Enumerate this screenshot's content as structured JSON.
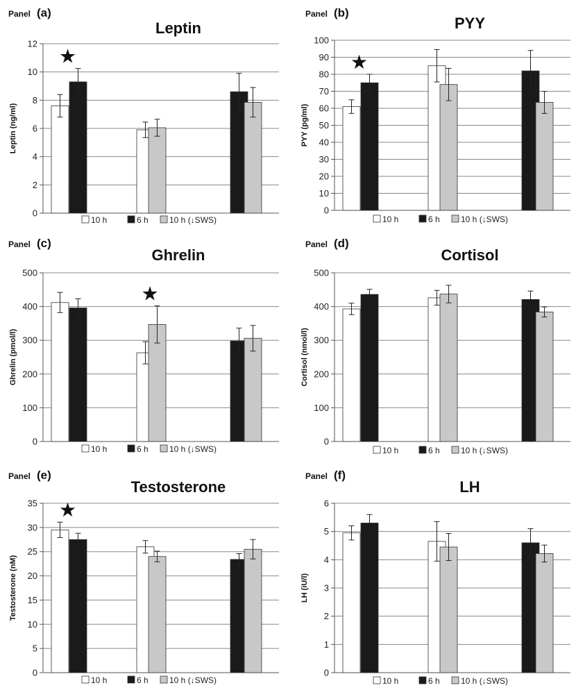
{
  "colors": {
    "ten_h": "#ffffff",
    "six_h": "#1a1a1a",
    "ten_h_sws": "#c8c8c8",
    "grid": "#888888",
    "axis": "#555555"
  },
  "legend": {
    "items": [
      "10 h",
      "6 h",
      "10 h (↓SWS)"
    ]
  },
  "chart_data": [
    {
      "type": "bar",
      "panel_label": "Panel",
      "panel_letter": "(a)",
      "title": "Leptin",
      "ylabel": "Leptin (ng/ml)",
      "ylim": [
        0,
        12
      ],
      "yticks": [
        0,
        2,
        4,
        6,
        8,
        10,
        12
      ],
      "grid": true,
      "groups": [
        {
          "bars": [
            {
              "series": "10 h",
              "value": 7.6,
              "error": 0.8
            },
            {
              "series": "6 h",
              "value": 9.3,
              "error": 0.95
            }
          ],
          "star": "★"
        },
        {
          "bars": [
            {
              "series": "10 h",
              "value": 5.9,
              "error": 0.55
            },
            {
              "series": "10 h (↓SWS)",
              "value": 6.05,
              "error": 0.6
            }
          ]
        },
        {
          "bars": [
            {
              "series": "6 h",
              "value": 8.6,
              "error": 1.3
            },
            {
              "series": "10 h (↓SWS)",
              "value": 7.85,
              "error": 1.05
            }
          ]
        }
      ]
    },
    {
      "type": "bar",
      "panel_label": "Panel",
      "panel_letter": "(b)",
      "title": "PYY",
      "ylabel": "PYY (pg/ml)",
      "ylim": [
        0,
        100
      ],
      "yticks": [
        0,
        10,
        20,
        30,
        40,
        50,
        60,
        70,
        80,
        90,
        100
      ],
      "grid": true,
      "groups": [
        {
          "bars": [
            {
              "series": "10 h",
              "value": 61,
              "error": 4
            },
            {
              "series": "6 h",
              "value": 75,
              "error": 5
            }
          ],
          "star": "★"
        },
        {
          "bars": [
            {
              "series": "10 h",
              "value": 85,
              "error": 9.5
            },
            {
              "series": "10 h (↓SWS)",
              "value": 74,
              "error": 9.5
            }
          ]
        },
        {
          "bars": [
            {
              "series": "6 h",
              "value": 82,
              "error": 12
            },
            {
              "series": "10 h (↓SWS)",
              "value": 63.5,
              "error": 6.5
            }
          ]
        }
      ]
    },
    {
      "type": "bar",
      "panel_label": "Panel",
      "panel_letter": "(c)",
      "title": "Ghrelin",
      "ylabel": "Ghrelin (pmol/l)",
      "ylim": [
        0,
        500
      ],
      "yticks": [
        0,
        100,
        200,
        300,
        400,
        500
      ],
      "grid": true,
      "groups": [
        {
          "bars": [
            {
              "series": "10 h",
              "value": 412,
              "error": 30
            },
            {
              "series": "6 h",
              "value": 396,
              "error": 27
            }
          ]
        },
        {
          "bars": [
            {
              "series": "10 h",
              "value": 263,
              "error": 33
            },
            {
              "series": "10 h (↓SWS)",
              "value": 347,
              "error": 55
            }
          ],
          "star": "★"
        },
        {
          "bars": [
            {
              "series": "6 h",
              "value": 298,
              "error": 38
            },
            {
              "series": "10 h (↓SWS)",
              "value": 306,
              "error": 38
            }
          ]
        }
      ]
    },
    {
      "type": "bar",
      "panel_label": "Panel",
      "panel_letter": "(d)",
      "title": "Cortisol",
      "ylabel": "Cortisol (nmol/l)",
      "ylim": [
        0,
        500
      ],
      "yticks": [
        0,
        100,
        200,
        300,
        400,
        500
      ],
      "grid": true,
      "groups": [
        {
          "bars": [
            {
              "series": "10 h",
              "value": 393,
              "error": 17
            },
            {
              "series": "6 h",
              "value": 436,
              "error": 15
            }
          ]
        },
        {
          "bars": [
            {
              "series": "10 h",
              "value": 426,
              "error": 22
            },
            {
              "series": "10 h (↓SWS)",
              "value": 437,
              "error": 26
            }
          ]
        },
        {
          "bars": [
            {
              "series": "6 h",
              "value": 421,
              "error": 25
            },
            {
              "series": "10 h (↓SWS)",
              "value": 384,
              "error": 15
            }
          ]
        }
      ]
    },
    {
      "type": "bar",
      "panel_label": "Panel",
      "panel_letter": "(e)",
      "title": "Testosterone",
      "ylabel": "Testosterone (nM)",
      "ylim": [
        0,
        35
      ],
      "yticks": [
        0,
        5,
        10,
        15,
        20,
        25,
        30,
        35
      ],
      "grid": true,
      "groups": [
        {
          "bars": [
            {
              "series": "10 h",
              "value": 29.5,
              "error": 1.6
            },
            {
              "series": "6 h",
              "value": 27.5,
              "error": 1.3
            }
          ],
          "star": "★"
        },
        {
          "bars": [
            {
              "series": "10 h",
              "value": 26,
              "error": 1.3
            },
            {
              "series": "10 h (↓SWS)",
              "value": 24,
              "error": 1.1
            }
          ]
        },
        {
          "bars": [
            {
              "series": "6 h",
              "value": 23.4,
              "error": 1.2
            },
            {
              "series": "10 h (↓SWS)",
              "value": 25.5,
              "error": 2.0
            }
          ]
        }
      ]
    },
    {
      "type": "bar",
      "panel_label": "Panel",
      "panel_letter": "(f)",
      "title": "LH",
      "ylabel": "LH (iU/l)",
      "ylim": [
        0,
        6
      ],
      "yticks": [
        0,
        1,
        2,
        3,
        4,
        5,
        6
      ],
      "grid": true,
      "groups": [
        {
          "bars": [
            {
              "series": "10 h",
              "value": 4.95,
              "error": 0.25
            },
            {
              "series": "6 h",
              "value": 5.3,
              "error": 0.3
            }
          ]
        },
        {
          "bars": [
            {
              "series": "10 h",
              "value": 4.65,
              "error": 0.7
            },
            {
              "series": "10 h (↓SWS)",
              "value": 4.45,
              "error": 0.48
            }
          ]
        },
        {
          "bars": [
            {
              "series": "6 h",
              "value": 4.6,
              "error": 0.5
            },
            {
              "series": "10 h (↓SWS)",
              "value": 4.22,
              "error": 0.3
            }
          ]
        }
      ]
    }
  ]
}
